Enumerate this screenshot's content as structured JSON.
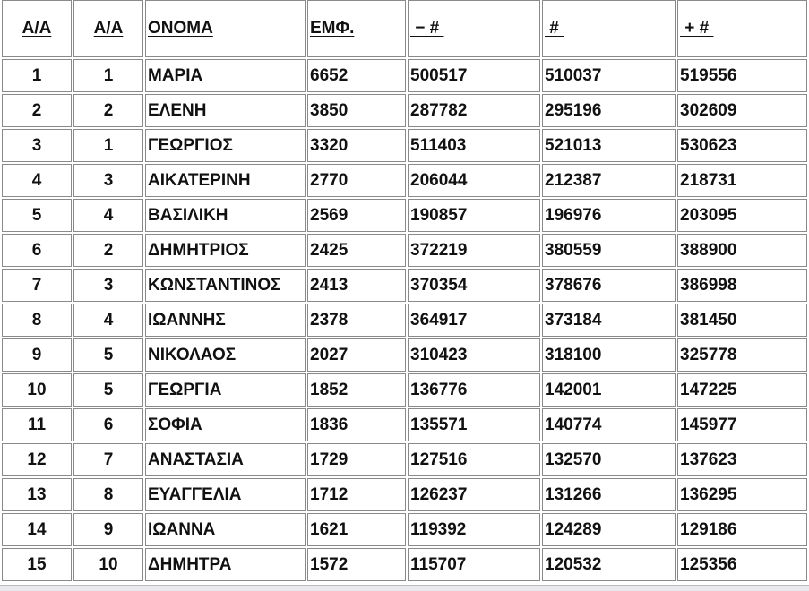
{
  "headers": [
    "Α/Α",
    "Α/Α",
    "ΟΝΟΜΑ",
    "ΕΜΦ.",
    " − # ",
    " # ",
    " + # "
  ],
  "rows": [
    [
      "1",
      "1",
      "ΜΑΡΙΑ",
      "6652",
      "500517",
      "510037",
      "519556"
    ],
    [
      "2",
      "2",
      "ΕΛΕΝΗ",
      "3850",
      "287782",
      "295196",
      "302609"
    ],
    [
      "3",
      "1",
      "ΓΕΩΡΓΙΟΣ",
      "3320",
      "511403",
      "521013",
      "530623"
    ],
    [
      "4",
      "3",
      "ΑΙΚΑΤΕΡΙΝΗ",
      "2770",
      "206044",
      "212387",
      "218731"
    ],
    [
      "5",
      "4",
      "ΒΑΣΙΛΙΚΗ",
      "2569",
      "190857",
      "196976",
      "203095"
    ],
    [
      "6",
      "2",
      "ΔΗΜΗΤΡΙΟΣ",
      "2425",
      "372219",
      "380559",
      "388900"
    ],
    [
      "7",
      "3",
      "ΚΩΝΣΤΑΝΤΙΝΟΣ",
      "2413",
      "370354",
      "378676",
      "386998"
    ],
    [
      "8",
      "4",
      "ΙΩΑΝΝΗΣ",
      "2378",
      "364917",
      "373184",
      "381450"
    ],
    [
      "9",
      "5",
      "ΝΙΚΟΛΑΟΣ",
      "2027",
      "310423",
      "318100",
      "325778"
    ],
    [
      "10",
      "5",
      "ΓΕΩΡΓΙΑ",
      "1852",
      "136776",
      "142001",
      "147225"
    ],
    [
      "11",
      "6",
      "ΣΟΦΙΑ",
      "1836",
      "135571",
      "140774",
      "145977"
    ],
    [
      "12",
      "7",
      "ΑΝΑΣΤΑΣΙΑ",
      "1729",
      "127516",
      "132570",
      "137623"
    ],
    [
      "13",
      "8",
      "ΕΥΑΓΓΕΛΙΑ",
      "1712",
      "126237",
      "131266",
      "136295"
    ],
    [
      "14",
      "9",
      "ΙΩΑΝΝΑ",
      "1621",
      "119392",
      "124289",
      "129186"
    ],
    [
      "15",
      "10",
      "ΔΗΜΗΤΡΑ",
      "1572",
      "115707",
      "120532",
      "125356"
    ]
  ]
}
